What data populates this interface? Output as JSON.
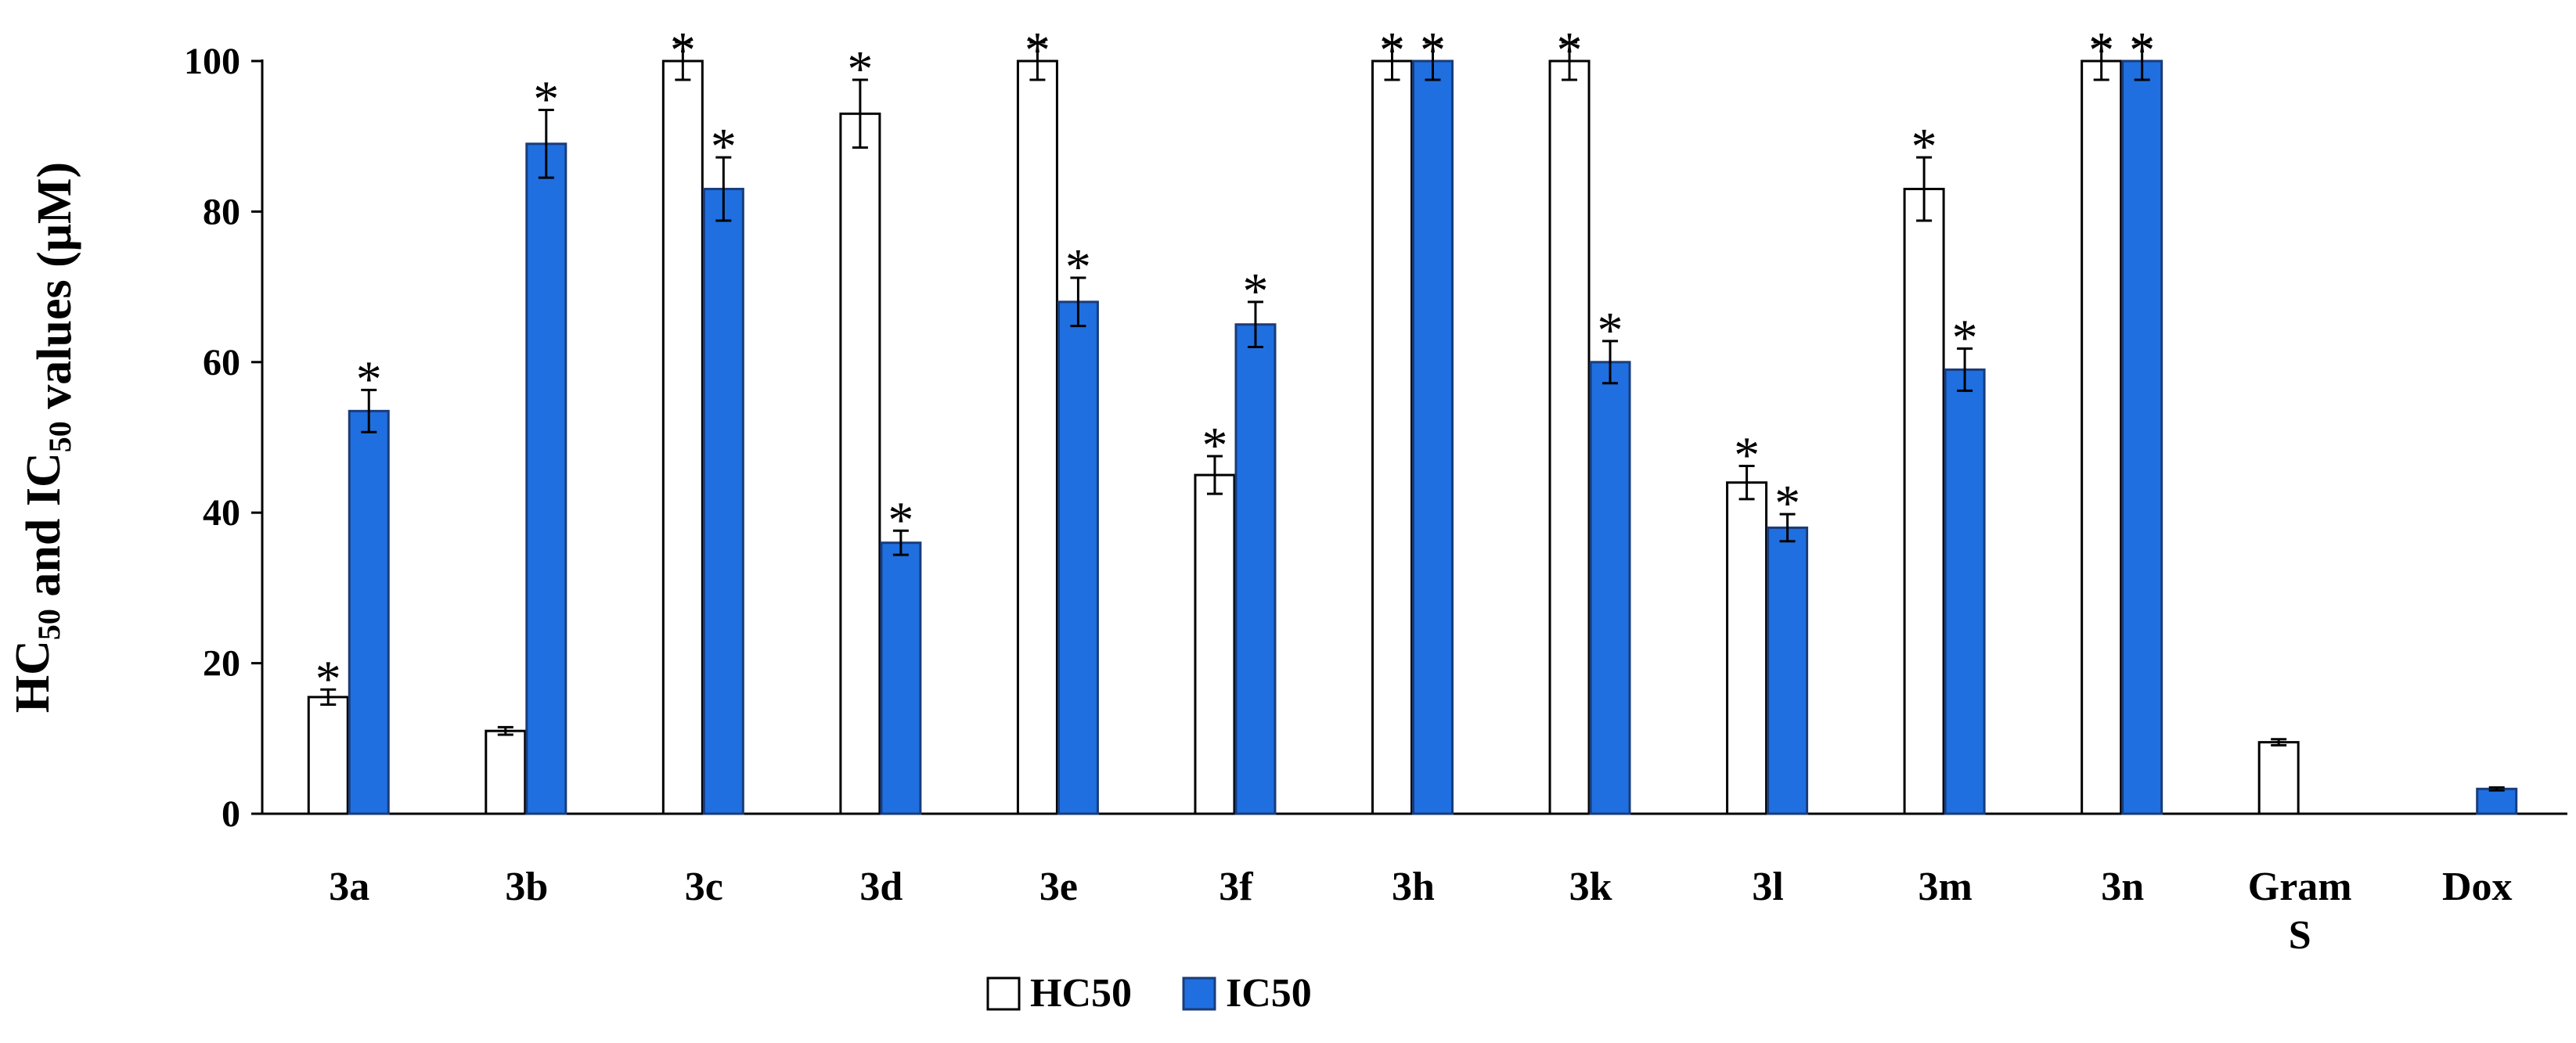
{
  "chart_data": {
    "type": "bar",
    "ylabel": {
      "parts": [
        {
          "text": "HC",
          "sub": false
        },
        {
          "text": "50",
          "sub": true
        },
        {
          "text": " and IC",
          "sub": false
        },
        {
          "text": "50",
          "sub": true
        },
        {
          "text": " values (μM)",
          "sub": false
        }
      ]
    },
    "ylim": [
      0,
      100
    ],
    "yticks": [
      0,
      20,
      40,
      60,
      80,
      100
    ],
    "categories": [
      [
        "3a"
      ],
      [
        "3b"
      ],
      [
        "3c"
      ],
      [
        "3d"
      ],
      [
        "3e"
      ],
      [
        "3f"
      ],
      [
        "3h"
      ],
      [
        "3k"
      ],
      [
        "3l"
      ],
      [
        "3m"
      ],
      [
        "3n"
      ],
      [
        "Gram",
        "S"
      ],
      [
        "Dox"
      ]
    ],
    "series": [
      {
        "name": "HC50",
        "color": "#ffffff",
        "values": [
          15.5,
          11,
          100,
          93,
          100,
          45,
          100,
          100,
          44,
          83,
          100,
          9.5,
          null
        ],
        "errors": [
          1,
          0.5,
          2.5,
          4.5,
          2.5,
          2.5,
          2.5,
          2.5,
          2.2,
          4.2,
          2.5,
          0.4,
          null
        ],
        "significant": [
          true,
          false,
          true,
          true,
          true,
          true,
          true,
          true,
          true,
          true,
          true,
          false,
          false
        ]
      },
      {
        "name": "IC50",
        "color": "#1f6fe0",
        "values": [
          53.5,
          89,
          83,
          36,
          68,
          65,
          100,
          60,
          38,
          59,
          100,
          null,
          3.3
        ],
        "errors": [
          2.8,
          4.5,
          4.2,
          1.6,
          3.2,
          3,
          2.5,
          2.8,
          1.8,
          2.8,
          2.5,
          null,
          0.2
        ],
        "significant": [
          true,
          true,
          true,
          true,
          true,
          true,
          true,
          true,
          true,
          true,
          true,
          false,
          false
        ]
      }
    ],
    "annotation_symbol": "*",
    "grid": false,
    "legend_position": "bottom-center"
  }
}
